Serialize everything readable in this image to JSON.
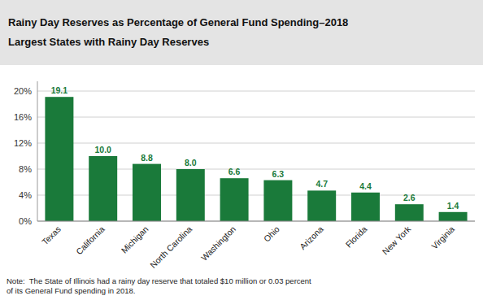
{
  "chart_data": {
    "type": "bar",
    "title": "Rainy Day Reserves as Percentage of General Fund Spending–2018",
    "subtitle": "Largest States with Rainy Day Reserves",
    "categories": [
      "Texas",
      "California",
      "Michigan",
      "North Carolina",
      "Washington",
      "Ohio",
      "Arizona",
      "Florida",
      "New York",
      "Virginia"
    ],
    "values": [
      19.1,
      10.0,
      8.8,
      8.0,
      6.6,
      6.3,
      4.7,
      4.4,
      2.6,
      1.4
    ],
    "value_labels": [
      "19.1",
      "10.0",
      "8.8",
      "8.0",
      "6.6",
      "6.3",
      "4.7",
      "4.4",
      "2.6",
      "1.4"
    ],
    "data_labels": true,
    "color": "#1a7a3a",
    "ylim": [
      0,
      21.5
    ],
    "yticks": [
      {
        "value": 0,
        "label": "0%"
      },
      {
        "value": 4,
        "label": "4%"
      },
      {
        "value": 8,
        "label": "8%"
      },
      {
        "value": 12,
        "label": "12%"
      },
      {
        "value": 16,
        "label": "16%"
      },
      {
        "value": 20,
        "label": "20%"
      }
    ],
    "grid": true,
    "annotations": [
      "Note:  The State of Illinois had a rainy day reserve that totaled $10 million or 0.03 percent\nof its General Fund spending in 2018."
    ]
  }
}
